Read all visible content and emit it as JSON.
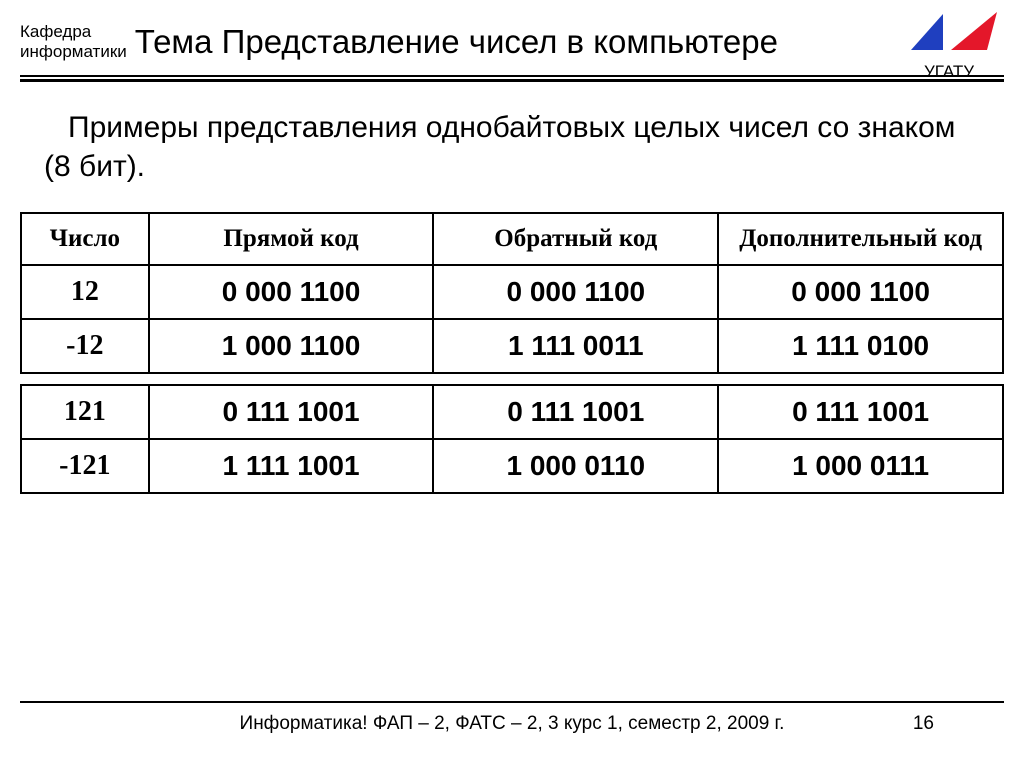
{
  "header": {
    "department_line1": "Кафедра",
    "department_line2": "информатики",
    "title": "Тема Представление чисел в компьютере",
    "univ_label": "УГАТУ",
    "logo": {
      "blue": "#1f3fbf",
      "red": "#e4172a",
      "white": "#ffffff"
    }
  },
  "subtitle": "Примеры представления однобайтовых целых чисел со знаком (8 бит).",
  "table": {
    "columns": [
      "Число",
      "Прямой код",
      "Обратный код",
      "Дополнительный код"
    ],
    "group1": [
      {
        "n": "12",
        "direct": "0 000 1100",
        "inverse": "0 000 1100",
        "twos": "0 000 1100"
      },
      {
        "n": "-12",
        "direct": "1 000 1100",
        "inverse": "1 111 0011",
        "twos": "1 111 0100"
      }
    ],
    "group2": [
      {
        "n": "121",
        "direct": "0 111 1001",
        "inverse": "0 111 1001",
        "twos": "0 111 1001"
      },
      {
        "n": "-121",
        "direct": "1 111 1001",
        "inverse": "1 000 0110",
        "twos": "1 000 0111"
      }
    ]
  },
  "footer": {
    "text": "Информатика! ФАП – 2, ФАТС – 2, 3 курс 1, семестр 2, 2009 г.",
    "page": "16"
  }
}
